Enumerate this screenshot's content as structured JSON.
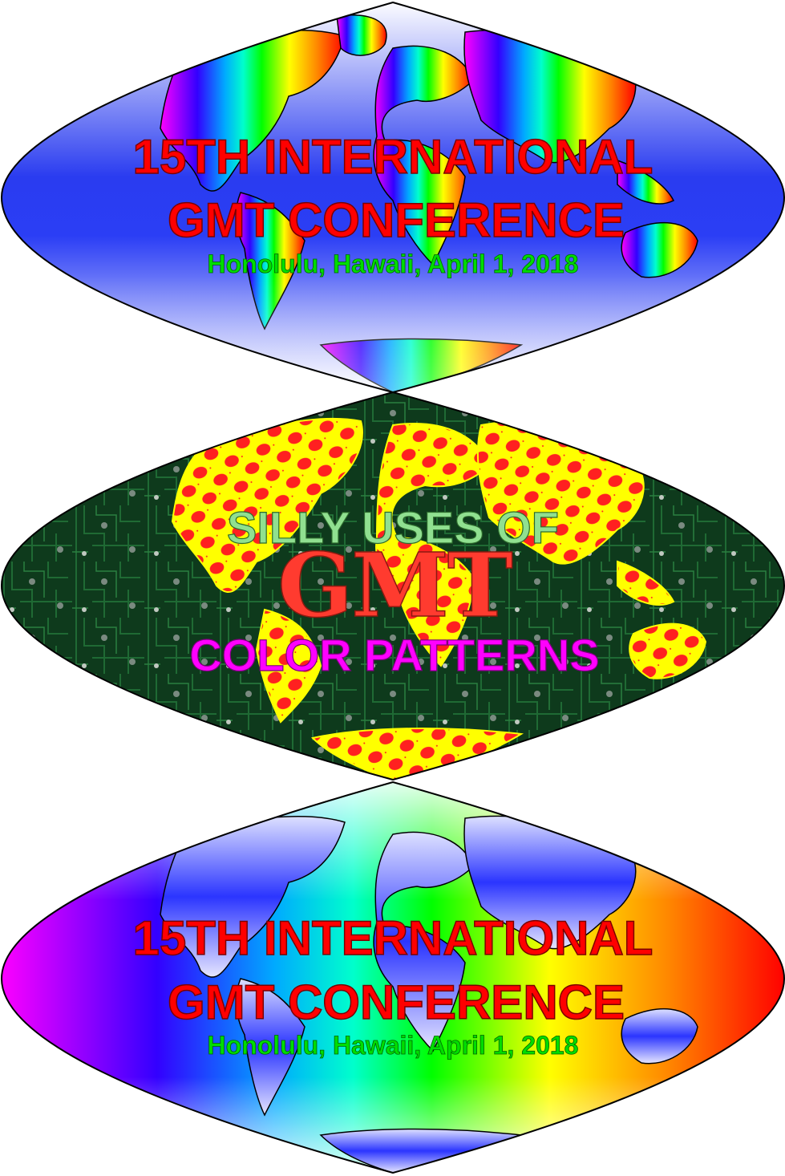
{
  "map_top": {
    "line1": "15TH INTERNATIONAL",
    "line2": "GMT CONFERENCE",
    "subtitle": "Honolulu, Hawaii, April 1, 2018"
  },
  "map_middle": {
    "line1": "SILLY USES OF",
    "logo": "GMT",
    "line3": "COLOR PATTERNS"
  },
  "map_bottom": {
    "line1": "15TH INTERNATIONAL",
    "line2": "GMT CONFERENCE",
    "subtitle": "Honolulu, Hawaii, April 1, 2018"
  },
  "colors": {
    "title_fill": "#ff0000",
    "subtitle_fill": "#00dd00",
    "middle_line1_fill": "#90e090",
    "logo_fill": "#ff3b2f",
    "middle_line3_fill": "#ff00ff",
    "land_pattern_bg": "#ffff00",
    "land_pattern_dot": "#ff2020",
    "circuit_bg": "#0e3a1c"
  }
}
